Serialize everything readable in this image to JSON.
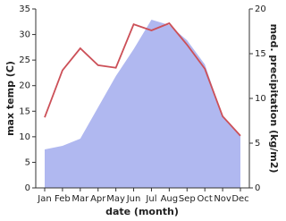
{
  "chart_data": {
    "type": "line",
    "x_label": "date (month)",
    "y_label": "max temp (C)",
    "y2_label": "med. precipitation (kg/m2)",
    "categories": [
      "Jan",
      "Feb",
      "Mar",
      "Apr",
      "May",
      "Jun",
      "Jul",
      "Aug",
      "Sep",
      "Oct",
      "Nov",
      "Dec"
    ],
    "series": [
      {
        "name": "med. precipitation",
        "kind": "area",
        "axis": "y2",
        "color": "#b0b8f0",
        "values": [
          4.3,
          4.7,
          5.5,
          9,
          12.5,
          15.5,
          18.8,
          18.2,
          16.5,
          13.8,
          8,
          5.8
        ]
      },
      {
        "name": "max temp",
        "kind": "line",
        "color": "#cc5058",
        "values": [
          13.8,
          23,
          27.3,
          24,
          23.5,
          32,
          30.8,
          32.2,
          28,
          23.3,
          14,
          10.2
        ]
      }
    ],
    "ylim": [
      0,
      35
    ],
    "yticks": [
      0,
      5,
      10,
      15,
      20,
      25,
      30,
      35
    ],
    "y2lim": [
      0,
      20
    ],
    "y2ticks": [
      0,
      5,
      10,
      15,
      20
    ]
  }
}
